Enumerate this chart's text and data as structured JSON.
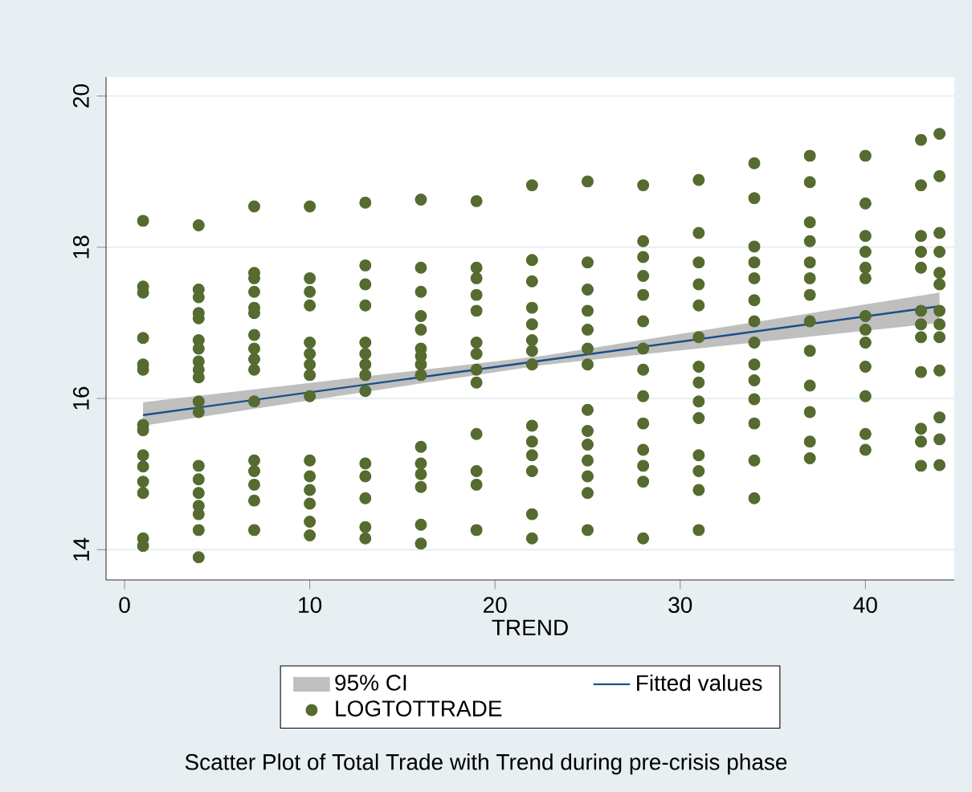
{
  "chart_data": {
    "type": "scatter",
    "title": "Scatter Plot of Total Trade with Trend during pre-crisis phase",
    "xlabel": "TREND",
    "xlim": [
      -1,
      44.8
    ],
    "ylim": [
      13.6,
      20.25
    ],
    "xticks": [
      0,
      10,
      20,
      30,
      40
    ],
    "yticks": [
      14,
      16,
      18,
      20
    ],
    "grid": "y",
    "legend": "bottom",
    "annotations": [
      "95% CI"
    ],
    "series": [
      {
        "name": "Fitted values",
        "type": "line",
        "color": "#1a4f8a",
        "x": [
          1,
          22.5,
          44
        ],
        "values": [
          15.78,
          16.5,
          17.22
        ],
        "lower": [
          15.64,
          16.44,
          17.0
        ],
        "upper": [
          15.95,
          16.56,
          17.4
        ]
      },
      {
        "name": "LOGTOTTRADE",
        "color": "#556b2f",
        "marker": "circle",
        "x": [
          1,
          1,
          1,
          1,
          1,
          1,
          1,
          1,
          1,
          1,
          1,
          1,
          1,
          1,
          4,
          4,
          4,
          4,
          4,
          4,
          4,
          4,
          4,
          4,
          4,
          4,
          4,
          4,
          4,
          4,
          4,
          4,
          4,
          7,
          7,
          7,
          7,
          7,
          7,
          7,
          7,
          7,
          7,
          7,
          7,
          7,
          7,
          7,
          7,
          10,
          10,
          10,
          10,
          10,
          10,
          10,
          10,
          10,
          10,
          10,
          10,
          10,
          10,
          10,
          13,
          13,
          13,
          13,
          13,
          13,
          13,
          13,
          13,
          13,
          13,
          13,
          13,
          13,
          16,
          16,
          16,
          16,
          16,
          16,
          16,
          16,
          16,
          16,
          16,
          16,
          16,
          16,
          16,
          19,
          19,
          19,
          19,
          19,
          19,
          19,
          19,
          19,
          19,
          19,
          19,
          19,
          22,
          22,
          22,
          22,
          22,
          22,
          22,
          22,
          22,
          22,
          22,
          22,
          22,
          22,
          25,
          25,
          25,
          25,
          25,
          25,
          25,
          25,
          25,
          25,
          25,
          25,
          25,
          25,
          28,
          28,
          28,
          28,
          28,
          28,
          28,
          28,
          28,
          28,
          28,
          28,
          28,
          28,
          31,
          31,
          31,
          31,
          31,
          31,
          31,
          31,
          31,
          31,
          31,
          31,
          31,
          31,
          34,
          34,
          34,
          34,
          34,
          34,
          34,
          34,
          34,
          34,
          34,
          34,
          34,
          34,
          37,
          37,
          37,
          37,
          37,
          37,
          37,
          37,
          37,
          37,
          37,
          37,
          37,
          40,
          40,
          40,
          40,
          40,
          40,
          40,
          40,
          40,
          40,
          40,
          40,
          40,
          43,
          43,
          43,
          43,
          43,
          43,
          43,
          43,
          43,
          43,
          43,
          43,
          44,
          44,
          44,
          44,
          44,
          44,
          44,
          44,
          44,
          44,
          44,
          44,
          44
        ],
        "values": [
          18.35,
          17.48,
          17.4,
          16.8,
          16.45,
          16.38,
          15.65,
          15.58,
          15.25,
          15.1,
          14.9,
          14.75,
          14.15,
          14.05,
          18.29,
          17.44,
          17.34,
          17.13,
          17.06,
          16.77,
          16.66,
          16.49,
          16.38,
          16.28,
          15.96,
          15.82,
          15.11,
          14.93,
          14.75,
          14.58,
          14.47,
          14.26,
          13.9,
          18.54,
          17.66,
          17.59,
          17.41,
          17.2,
          17.13,
          16.84,
          16.66,
          16.52,
          16.38,
          15.96,
          15.18,
          15.04,
          14.86,
          14.65,
          14.26,
          18.54,
          17.59,
          17.41,
          17.23,
          16.74,
          16.59,
          16.45,
          16.31,
          16.03,
          15.18,
          14.97,
          14.79,
          14.61,
          14.37,
          14.19,
          18.59,
          17.76,
          17.51,
          17.23,
          16.74,
          16.59,
          16.45,
          16.31,
          16.1,
          15.14,
          14.97,
          14.68,
          14.3,
          14.15,
          18.63,
          17.73,
          17.41,
          17.09,
          16.91,
          16.66,
          16.56,
          16.45,
          16.31,
          15.36,
          15.14,
          15.0,
          14.83,
          14.33,
          14.08,
          18.61,
          17.73,
          17.59,
          17.37,
          17.16,
          16.74,
          16.59,
          16.38,
          16.21,
          15.53,
          15.04,
          14.86,
          14.26,
          18.82,
          17.83,
          17.55,
          17.2,
          16.98,
          16.77,
          16.63,
          16.45,
          15.64,
          15.43,
          15.25,
          15.04,
          14.47,
          14.15,
          18.87,
          17.8,
          17.44,
          17.16,
          16.91,
          16.66,
          16.45,
          15.85,
          15.57,
          15.39,
          15.18,
          14.97,
          14.75,
          14.26,
          18.82,
          18.08,
          17.87,
          17.62,
          17.37,
          17.02,
          16.66,
          16.38,
          16.03,
          15.67,
          15.32,
          15.11,
          14.9,
          14.15,
          18.89,
          18.19,
          17.8,
          17.51,
          17.23,
          16.81,
          16.42,
          16.21,
          15.96,
          15.74,
          15.25,
          15.04,
          14.79,
          14.26,
          19.11,
          18.65,
          18.01,
          17.8,
          17.59,
          17.3,
          17.02,
          16.74,
          16.45,
          16.24,
          15.99,
          15.67,
          15.18,
          14.68,
          19.21,
          18.86,
          18.33,
          18.08,
          17.8,
          17.59,
          17.37,
          17.02,
          16.63,
          16.17,
          15.82,
          15.43,
          15.21,
          19.21,
          18.58,
          18.15,
          17.94,
          17.73,
          17.59,
          17.09,
          16.91,
          16.74,
          16.42,
          16.03,
          15.53,
          15.32,
          19.42,
          18.82,
          18.15,
          17.94,
          17.73,
          17.16,
          16.98,
          16.81,
          16.35,
          15.6,
          15.43,
          15.11,
          19.5,
          18.94,
          18.19,
          17.94,
          17.66,
          17.51,
          17.16,
          16.98,
          16.81,
          16.37,
          15.75,
          15.46,
          15.12
        ]
      }
    ]
  }
}
